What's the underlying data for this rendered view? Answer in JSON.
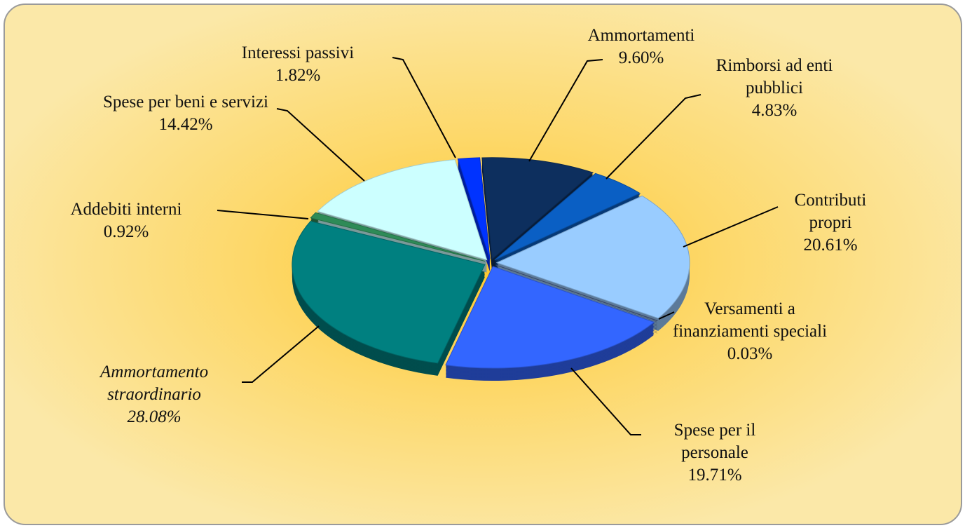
{
  "chart_data": {
    "type": "pie",
    "categories": [
      "Ammortamenti",
      "Rimborsi ad enti pubblici",
      "Contributi propri",
      "Versamenti a finanziamenti speciali",
      "Spese per il personale",
      "Ammortamento straordinario",
      "Addebiti interni",
      "Spese per beni e servizi",
      "Interessi passivi"
    ],
    "values": [
      9.6,
      4.83,
      20.61,
      0.03,
      19.71,
      28.08,
      0.92,
      14.42,
      1.82
    ],
    "value_labels": [
      "9.60%",
      "4.83%",
      "20.61%",
      "0.03%",
      "19.71%",
      "28.08%",
      "0.92%",
      "14.42%",
      "1.82%"
    ],
    "colors": [
      "#0d2f5e",
      "#0a5fc4",
      "#99ccff",
      "#4a5a80",
      "#3366ff",
      "#008080",
      "#2e8b57",
      "#ccffff",
      "#0033ff"
    ]
  }
}
